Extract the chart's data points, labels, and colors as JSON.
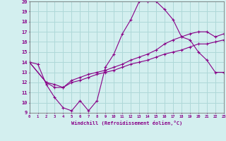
{
  "xlabel": "Windchill (Refroidissement éolien,°C)",
  "xlim": [
    0,
    23
  ],
  "ylim": [
    9,
    20
  ],
  "yticks": [
    9,
    10,
    11,
    12,
    13,
    14,
    15,
    16,
    17,
    18,
    19,
    20
  ],
  "xticks": [
    0,
    1,
    2,
    3,
    4,
    5,
    6,
    7,
    8,
    9,
    10,
    11,
    12,
    13,
    14,
    15,
    16,
    17,
    18,
    19,
    20,
    21,
    22,
    23
  ],
  "background_color": "#d3efef",
  "grid_color": "#aed8d8",
  "line_color": "#880088",
  "line1_x": [
    0,
    1,
    2,
    3,
    4,
    5,
    6,
    7,
    8,
    9,
    10,
    11,
    12,
    13,
    14,
    15,
    16,
    17,
    18,
    19,
    20,
    21,
    22,
    23
  ],
  "line1_y": [
    14,
    13.8,
    11.8,
    10.5,
    9.5,
    9.2,
    10.2,
    9.2,
    10.2,
    13.5,
    14.8,
    16.8,
    18.2,
    20.0,
    20.0,
    20.0,
    19.2,
    18.2,
    16.5,
    16.2,
    15.0,
    14.2,
    13.0,
    13.0
  ],
  "line2_x": [
    0,
    2,
    3,
    4,
    5,
    6,
    7,
    8,
    9,
    10,
    11,
    12,
    13,
    14,
    15,
    16,
    17,
    18,
    19,
    20,
    21,
    22,
    23
  ],
  "line2_y": [
    14,
    12.0,
    11.5,
    11.5,
    12.2,
    12.5,
    12.8,
    13.0,
    13.2,
    13.5,
    13.8,
    14.2,
    14.5,
    14.8,
    15.2,
    15.8,
    16.2,
    16.5,
    16.8,
    17.0,
    17.0,
    16.5,
    16.8
  ],
  "line3_x": [
    0,
    2,
    3,
    4,
    5,
    6,
    7,
    8,
    9,
    10,
    11,
    12,
    13,
    14,
    15,
    16,
    17,
    18,
    19,
    20,
    21,
    22,
    23
  ],
  "line3_y": [
    14,
    12.0,
    11.8,
    11.5,
    12.0,
    12.2,
    12.5,
    12.8,
    13.0,
    13.2,
    13.5,
    13.8,
    14.0,
    14.2,
    14.5,
    14.8,
    15.0,
    15.2,
    15.5,
    15.8,
    15.8,
    16.0,
    16.2
  ]
}
